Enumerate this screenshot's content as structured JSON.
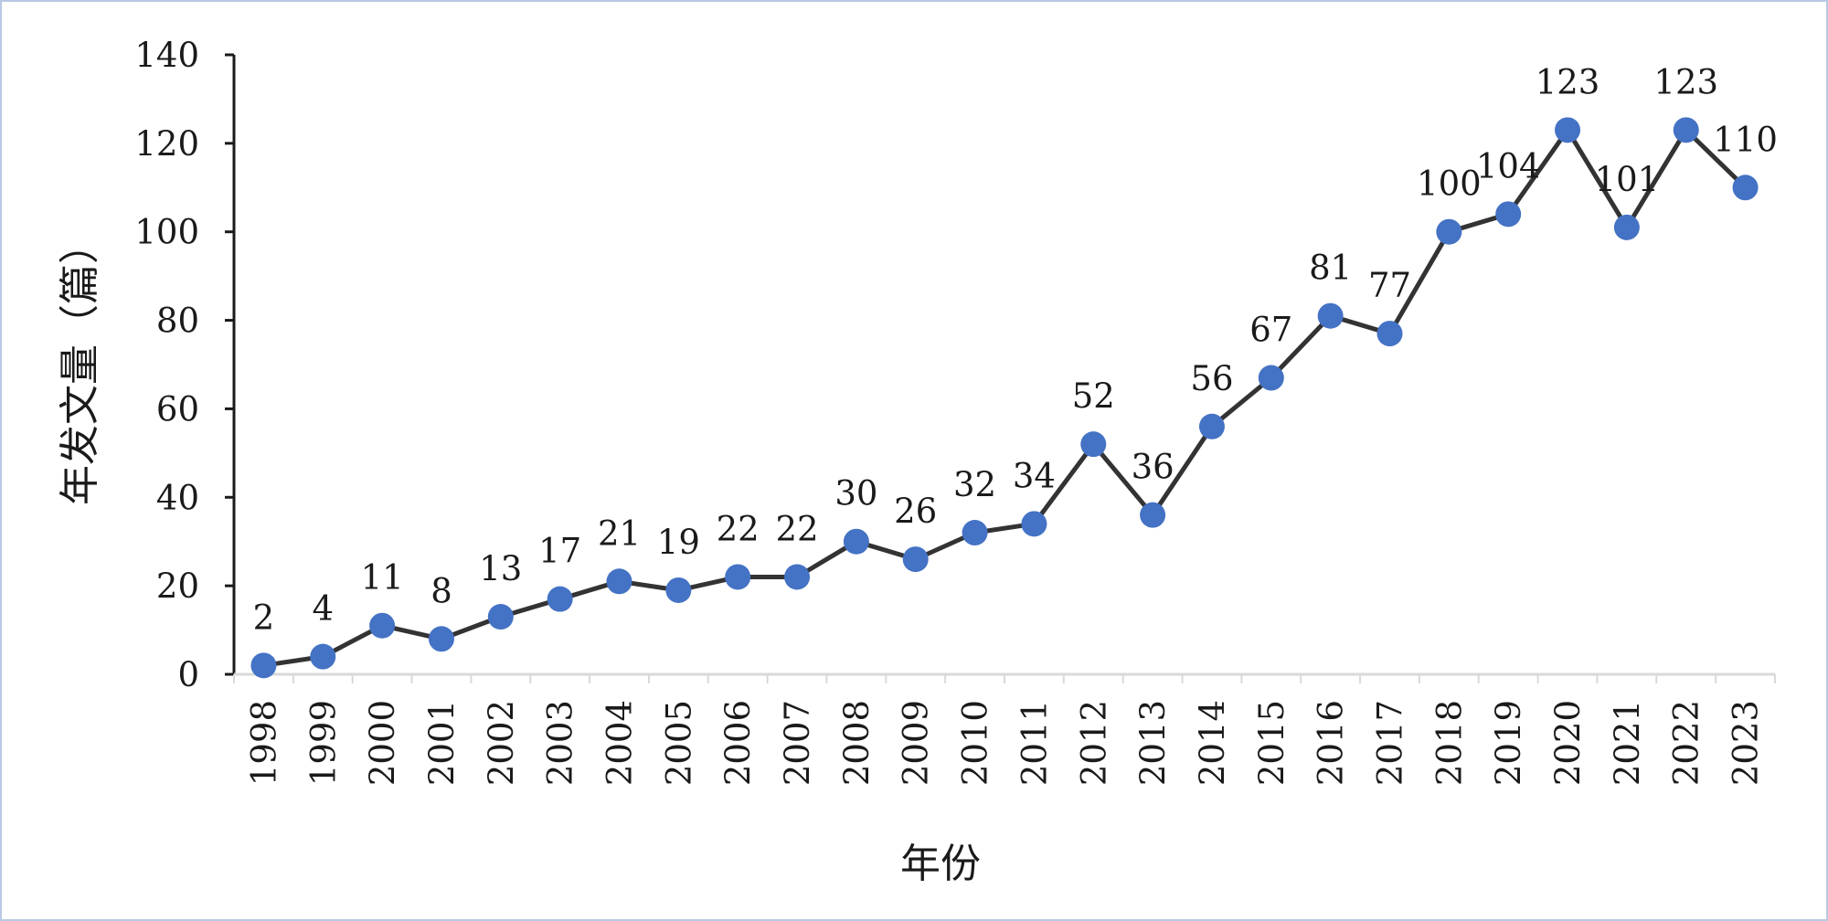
{
  "chart_data": {
    "type": "line",
    "x": [
      "1998",
      "1999",
      "2000",
      "2001",
      "2002",
      "2003",
      "2004",
      "2005",
      "2006",
      "2007",
      "2008",
      "2009",
      "2010",
      "2011",
      "2012",
      "2013",
      "2014",
      "2015",
      "2016",
      "2017",
      "2018",
      "2019",
      "2020",
      "2021",
      "2022",
      "2023"
    ],
    "values": [
      2,
      4,
      11,
      8,
      13,
      17,
      21,
      19,
      22,
      22,
      30,
      26,
      32,
      34,
      52,
      36,
      56,
      67,
      81,
      77,
      100,
      104,
      123,
      101,
      123,
      110
    ],
    "title": "",
    "xlabel": "年份",
    "ylabel": "年发文量（篇）",
    "ylim": [
      0,
      140
    ],
    "yticks": [
      0,
      20,
      40,
      60,
      80,
      100,
      120,
      140
    ],
    "grid": false,
    "legend": "none",
    "colors": {
      "line": "#333333",
      "marker": "#4472c4",
      "axis": "#1a1a1a",
      "frame": "#b9c9e4"
    }
  }
}
